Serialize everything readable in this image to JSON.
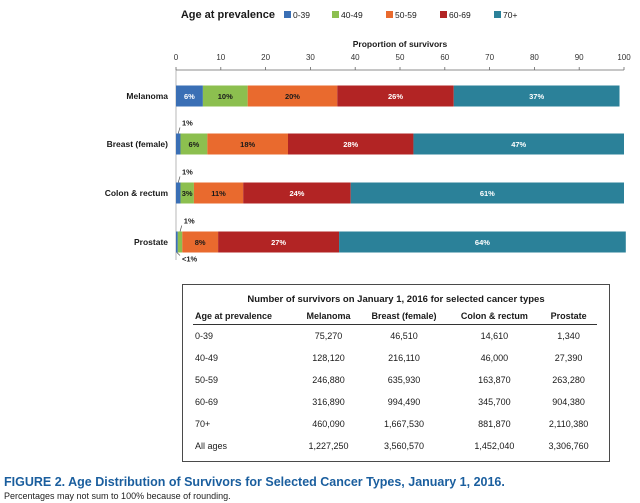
{
  "chart_data": {
    "type": "bar",
    "orientation": "horizontal-stacked",
    "legend_title": "Age at prevalence",
    "xlabel": "Proportion of survivors",
    "xlim": [
      0,
      100
    ],
    "x_ticks": [
      "0",
      "10",
      "20",
      "30",
      "40",
      "50",
      "60",
      "70",
      "80",
      "90",
      "100"
    ],
    "categories": [
      "Melanoma",
      "Breast (female)",
      "Colon & rectum",
      "Prostate"
    ],
    "series": [
      {
        "name": "0-39",
        "color": "#3a6fb5",
        "values": [
          6,
          1,
          1,
          0.4
        ],
        "labels": [
          "6%",
          "1%",
          "1%",
          "<1%"
        ]
      },
      {
        "name": "40-49",
        "color": "#8cbf4f",
        "values": [
          10,
          6,
          3,
          1
        ],
        "labels": [
          "10%",
          "6%",
          "3%",
          "1%"
        ]
      },
      {
        "name": "50-59",
        "color": "#e96a2e",
        "values": [
          20,
          18,
          11,
          8
        ],
        "labels": [
          "20%",
          "18%",
          "11%",
          "8%"
        ]
      },
      {
        "name": "60-69",
        "color": "#b22424",
        "values": [
          26,
          28,
          24,
          27
        ],
        "labels": [
          "26%",
          "28%",
          "24%",
          "27%"
        ]
      },
      {
        "name": "70+",
        "color": "#2b8199",
        "values": [
          37,
          47,
          61,
          64
        ],
        "labels": [
          "37%",
          "47%",
          "61%",
          "64%"
        ]
      }
    ]
  },
  "table": {
    "title": "Number of survivors on January 1, 2016 for selected cancer types",
    "headers": [
      "Age at prevalence",
      "Melanoma",
      "Breast (female)",
      "Colon & rectum",
      "Prostate"
    ],
    "rows": [
      [
        "0-39",
        "75,270",
        "46,510",
        "14,610",
        "1,340"
      ],
      [
        "40-49",
        "128,120",
        "216,110",
        "46,000",
        "27,390"
      ],
      [
        "50-59",
        "246,880",
        "635,930",
        "163,870",
        "263,280"
      ],
      [
        "60-69",
        "316,890",
        "994,490",
        "345,700",
        "904,380"
      ],
      [
        "70+",
        "460,090",
        "1,667,530",
        "881,870",
        "2,110,380"
      ],
      [
        "All ages",
        "1,227,250",
        "3,560,570",
        "1,452,040",
        "3,306,760"
      ]
    ]
  },
  "figure": {
    "title": "FIGURE 2. Age Distribution of Survivors for Selected Cancer Types, January 1, 2016.",
    "note": "Percentages may not sum to 100% because of rounding."
  }
}
